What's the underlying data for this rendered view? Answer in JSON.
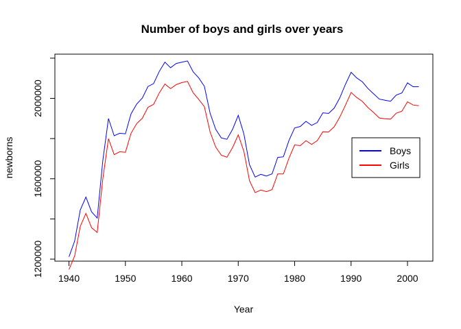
{
  "chart_data": {
    "type": "line",
    "title": "Number of boys and girls over years",
    "xlabel": "Year",
    "ylabel": "newborns",
    "xlim": [
      1937.5,
      2004.5
    ],
    "ylim": [
      1190000,
      2220000
    ],
    "xticks": [
      1940,
      1950,
      1960,
      1970,
      1980,
      1990,
      2000
    ],
    "yticks": [
      1200000,
      1600000,
      2000000
    ],
    "ytick_labels": [
      "1200000",
      "1600000",
      "2000000"
    ],
    "legend_position": "right",
    "x": [
      1940,
      1941,
      1942,
      1943,
      1944,
      1945,
      1946,
      1947,
      1948,
      1949,
      1950,
      1951,
      1952,
      1953,
      1954,
      1955,
      1956,
      1957,
      1958,
      1959,
      1960,
      1961,
      1962,
      1963,
      1964,
      1965,
      1966,
      1967,
      1968,
      1969,
      1970,
      1971,
      1972,
      1973,
      1974,
      1975,
      1976,
      1977,
      1978,
      1979,
      1980,
      1981,
      1982,
      1983,
      1984,
      1985,
      1986,
      1987,
      1988,
      1989,
      1990,
      1991,
      1992,
      1993,
      1994,
      1995,
      1996,
      1997,
      1998,
      1999,
      2000,
      2001,
      2002
    ],
    "series": [
      {
        "name": "Boys",
        "color": "#0000ff",
        "values": [
          1211684,
          1289734,
          1444365,
          1508959,
          1435301,
          1404587,
          1691220,
          1899876,
          1813852,
          1826352,
          1823555,
          1923020,
          1971262,
          2001798,
          2059068,
          2073719,
          2133588,
          2179960,
          2152546,
          2173638,
          2179708,
          2186274,
          2132466,
          2101632,
          2060162,
          1927054,
          1845862,
          1803388,
          1796326,
          1846572,
          1915378,
          1822910,
          1669927,
          1608326,
          1622114,
          1613135,
          1624436,
          1705916,
          1709394,
          1791267,
          1852616,
          1860272,
          1885676,
          1865553,
          1879490,
          1927983,
          1924868,
          1951153,
          2002424,
          2069490,
          2129495,
          2101518,
          2082097,
          2048861,
          2022589,
          1996355,
          1990480,
          1985596,
          2016205,
          2026854,
          2076969,
          2057922,
          2057979
        ]
      },
      {
        "name": "Girls",
        "color": "#ff0000",
        "values": [
          1148342,
          1216234,
          1362860,
          1427580,
          1356256,
          1333012,
          1600216,
          1799400,
          1720036,
          1734436,
          1731620,
          1826362,
          1874106,
          1901542,
          1955580,
          1970504,
          2026642,
          2071408,
          2048434,
          2068200,
          2078360,
          2084236,
          2027894,
          1994542,
          1958640,
          1833112,
          1757878,
          1717028,
          1706912,
          1755812,
          1818280,
          1736142,
          1590042,
          1531052,
          1543790,
          1535884,
          1545936,
          1623924,
          1623970,
          1703394,
          1768524,
          1764730,
          1789620,
          1770964,
          1789294,
          1834000,
          1832420,
          1858474,
          1906924,
          1965548,
          2029330,
          2004314,
          1984614,
          1953808,
          1929712,
          1902360,
          1898880,
          1896800,
          1925980,
          1936240,
          1982580,
          1967050,
          1963330
        ]
      }
    ]
  }
}
